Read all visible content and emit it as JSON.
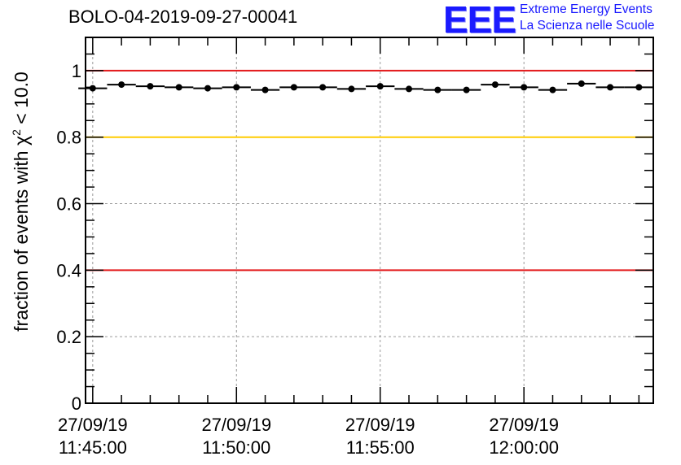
{
  "header": {
    "title": "BOLO-04-2019-09-27-00041",
    "logo_text": "EEE",
    "logo_line1": "Extreme Energy Events",
    "logo_line2": "La Scienza nelle Scuole"
  },
  "colors": {
    "red_line": "#e31a1c",
    "yellow_line": "#ffcc00",
    "grid": "#9a9a9a",
    "logo": "#1a1aff",
    "marker": "#000000"
  },
  "chart_data": {
    "type": "scatter",
    "title": "BOLO-04-2019-09-27-00041",
    "ylabel_prefix": "fraction of events with",
    "ylabel_symbol": "χ",
    "ylabel_exp": "2",
    "ylabel_suffix": "< 10.0",
    "xlabel": "",
    "xlim": [
      44.75,
      64.5
    ],
    "ylim": [
      0,
      1.1
    ],
    "grid": true,
    "x_ticks": [
      {
        "pos": 45,
        "date": "27/09/19",
        "time": "11:45:00"
      },
      {
        "pos": 50,
        "date": "27/09/19",
        "time": "11:50:00"
      },
      {
        "pos": 55,
        "date": "27/09/19",
        "time": "11:55:00"
      },
      {
        "pos": 60,
        "date": "27/09/19",
        "time": "12:00:00"
      }
    ],
    "y_ticks": [
      {
        "value": 0,
        "label": "0"
      },
      {
        "value": 0.2,
        "label": "0.2"
      },
      {
        "value": 0.4,
        "label": "0.4"
      },
      {
        "value": 0.6,
        "label": "0.6"
      },
      {
        "value": 0.8,
        "label": "0.8"
      },
      {
        "value": 1,
        "label": "1"
      }
    ],
    "reference_lines": [
      {
        "value": 1.0,
        "color": "#e31a1c"
      },
      {
        "value": 0.8,
        "color": "#ffcc00"
      },
      {
        "value": 0.4,
        "color": "#e31a1c"
      }
    ],
    "bin_width": 1,
    "points": [
      {
        "x": 45.0,
        "y": 0.947
      },
      {
        "x": 46.0,
        "y": 0.958
      },
      {
        "x": 47.0,
        "y": 0.953
      },
      {
        "x": 48.0,
        "y": 0.95
      },
      {
        "x": 49.0,
        "y": 0.947
      },
      {
        "x": 50.0,
        "y": 0.95
      },
      {
        "x": 51.0,
        "y": 0.942
      },
      {
        "x": 52.0,
        "y": 0.95
      },
      {
        "x": 53.0,
        "y": 0.95
      },
      {
        "x": 54.0,
        "y": 0.945
      },
      {
        "x": 55.0,
        "y": 0.953
      },
      {
        "x": 56.0,
        "y": 0.945
      },
      {
        "x": 57.0,
        "y": 0.942
      },
      {
        "x": 58.0,
        "y": 0.942
      },
      {
        "x": 59.0,
        "y": 0.958
      },
      {
        "x": 60.0,
        "y": 0.95
      },
      {
        "x": 61.0,
        "y": 0.942
      },
      {
        "x": 62.0,
        "y": 0.961
      },
      {
        "x": 63.0,
        "y": 0.95
      },
      {
        "x": 64.0,
        "y": 0.95
      }
    ]
  }
}
